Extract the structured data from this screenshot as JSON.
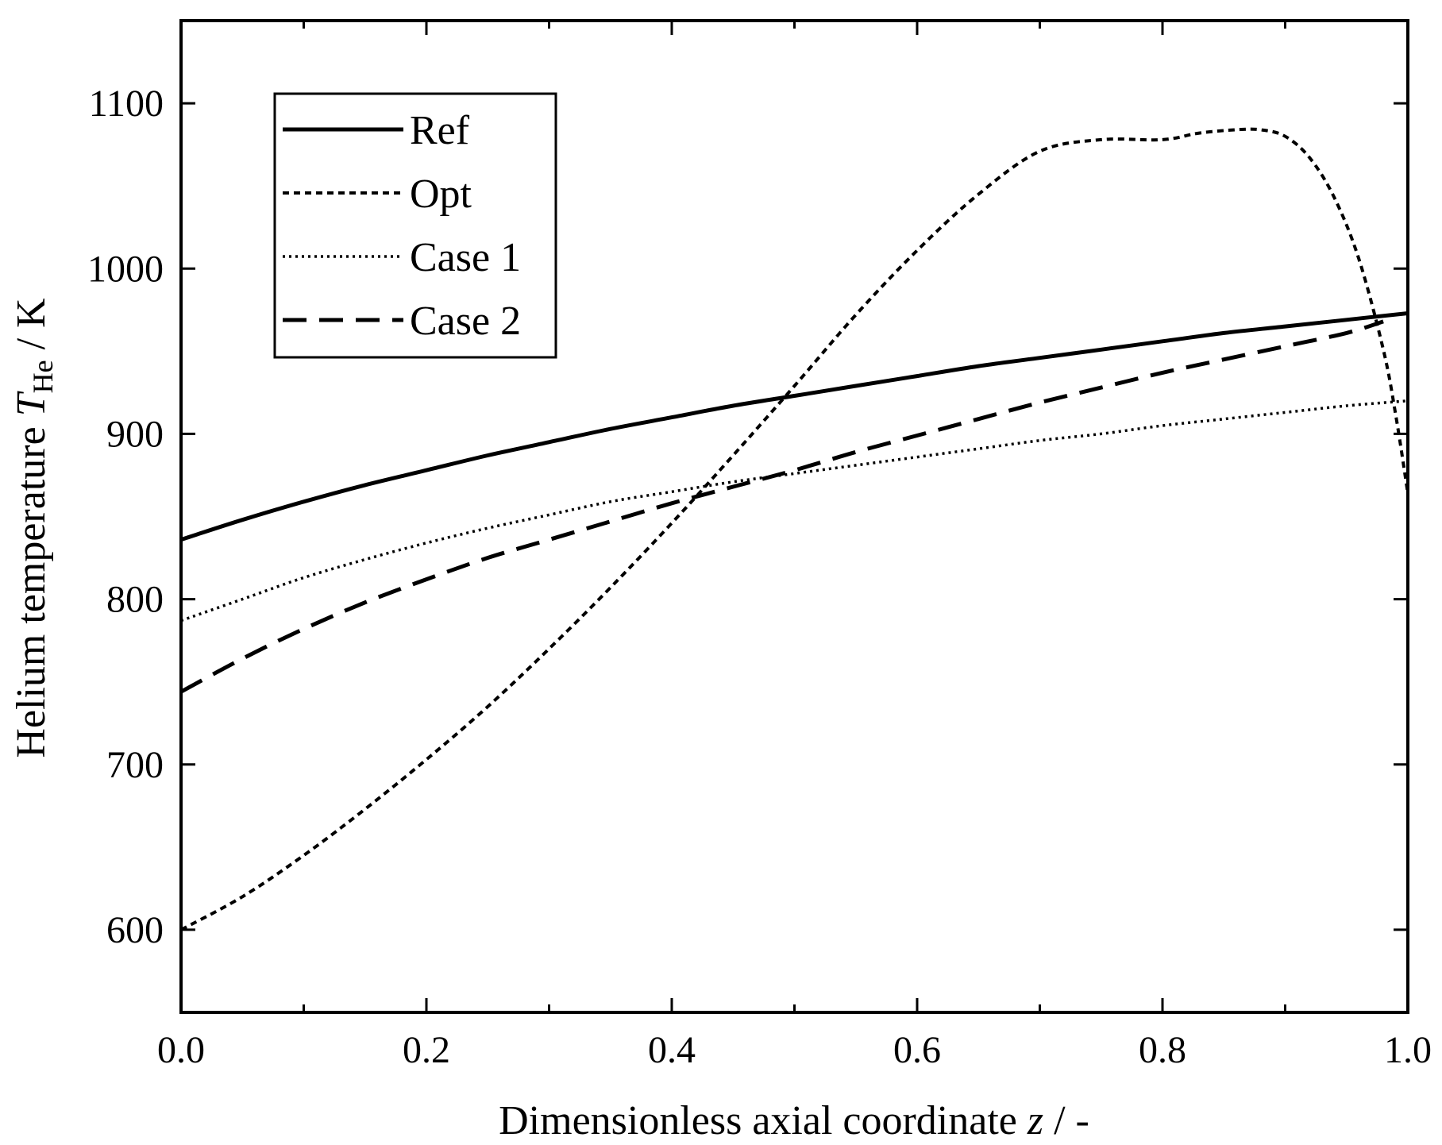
{
  "chart_data": {
    "type": "line",
    "title": "",
    "xlabel": {
      "main": "Dimensionless axial coordinate ",
      "variable": "z",
      "unit": " / -"
    },
    "ylabel": {
      "main": "Helium temperature ",
      "variable": "T",
      "subscript": "He",
      "unit": " / K"
    },
    "xlim": [
      0.0,
      1.0
    ],
    "ylim": [
      550,
      1150
    ],
    "xticks": [
      0.0,
      0.2,
      0.4,
      0.6,
      0.8,
      1.0
    ],
    "xtick_labels": [
      "0.0",
      "0.2",
      "0.4",
      "0.6",
      "0.8",
      "1.0"
    ],
    "x_minor_ticks": [
      0.1,
      0.3,
      0.5,
      0.7,
      0.9
    ],
    "yticks": [
      600,
      700,
      800,
      900,
      1000,
      1100
    ],
    "ytick_labels": [
      "600",
      "700",
      "800",
      "900",
      "1000",
      "1100"
    ],
    "grid": false,
    "legend_position": "top-left",
    "series": [
      {
        "name": "Ref",
        "style": "solid",
        "x": [
          0.0,
          0.05,
          0.1,
          0.15,
          0.2,
          0.25,
          0.3,
          0.35,
          0.4,
          0.45,
          0.5,
          0.55,
          0.6,
          0.65,
          0.7,
          0.75,
          0.8,
          0.85,
          0.9,
          0.95,
          1.0
        ],
        "y": [
          836,
          848,
          859,
          869,
          878,
          887,
          895,
          903,
          910,
          917,
          923,
          929,
          935,
          941,
          946,
          951,
          956,
          961,
          965,
          969,
          973
        ]
      },
      {
        "name": "Opt",
        "style": "short-dash",
        "x": [
          0.0,
          0.05,
          0.1,
          0.15,
          0.2,
          0.25,
          0.3,
          0.35,
          0.4,
          0.45,
          0.5,
          0.55,
          0.6,
          0.65,
          0.7,
          0.75,
          0.8,
          0.83,
          0.86,
          0.88,
          0.9,
          0.92,
          0.94,
          0.96,
          0.98,
          0.99,
          1.0
        ],
        "y": [
          600,
          620,
          645,
          673,
          703,
          735,
          770,
          807,
          846,
          887,
          929,
          972,
          1011,
          1045,
          1071,
          1078,
          1078,
          1082,
          1084,
          1084,
          1080,
          1067,
          1043,
          1006,
          951,
          912,
          864
        ]
      },
      {
        "name": "Case 1",
        "style": "dotted",
        "x": [
          0.0,
          0.05,
          0.1,
          0.15,
          0.2,
          0.25,
          0.3,
          0.35,
          0.4,
          0.45,
          0.5,
          0.55,
          0.6,
          0.65,
          0.7,
          0.75,
          0.8,
          0.85,
          0.9,
          0.95,
          1.0
        ],
        "y": [
          787,
          800,
          813,
          824,
          834,
          843,
          851,
          859,
          865,
          871,
          876,
          881,
          886,
          891,
          896,
          900,
          905,
          909,
          913,
          917,
          920
        ]
      },
      {
        "name": "Case 2",
        "style": "long-dash",
        "x": [
          0.0,
          0.05,
          0.1,
          0.15,
          0.2,
          0.25,
          0.3,
          0.35,
          0.4,
          0.45,
          0.5,
          0.55,
          0.6,
          0.65,
          0.7,
          0.75,
          0.8,
          0.85,
          0.9,
          0.95,
          0.98
        ],
        "y": [
          744,
          764,
          782,
          798,
          812,
          825,
          836,
          847,
          858,
          868,
          878,
          889,
          899,
          909,
          919,
          928,
          937,
          945,
          953,
          961,
          968
        ]
      }
    ]
  }
}
